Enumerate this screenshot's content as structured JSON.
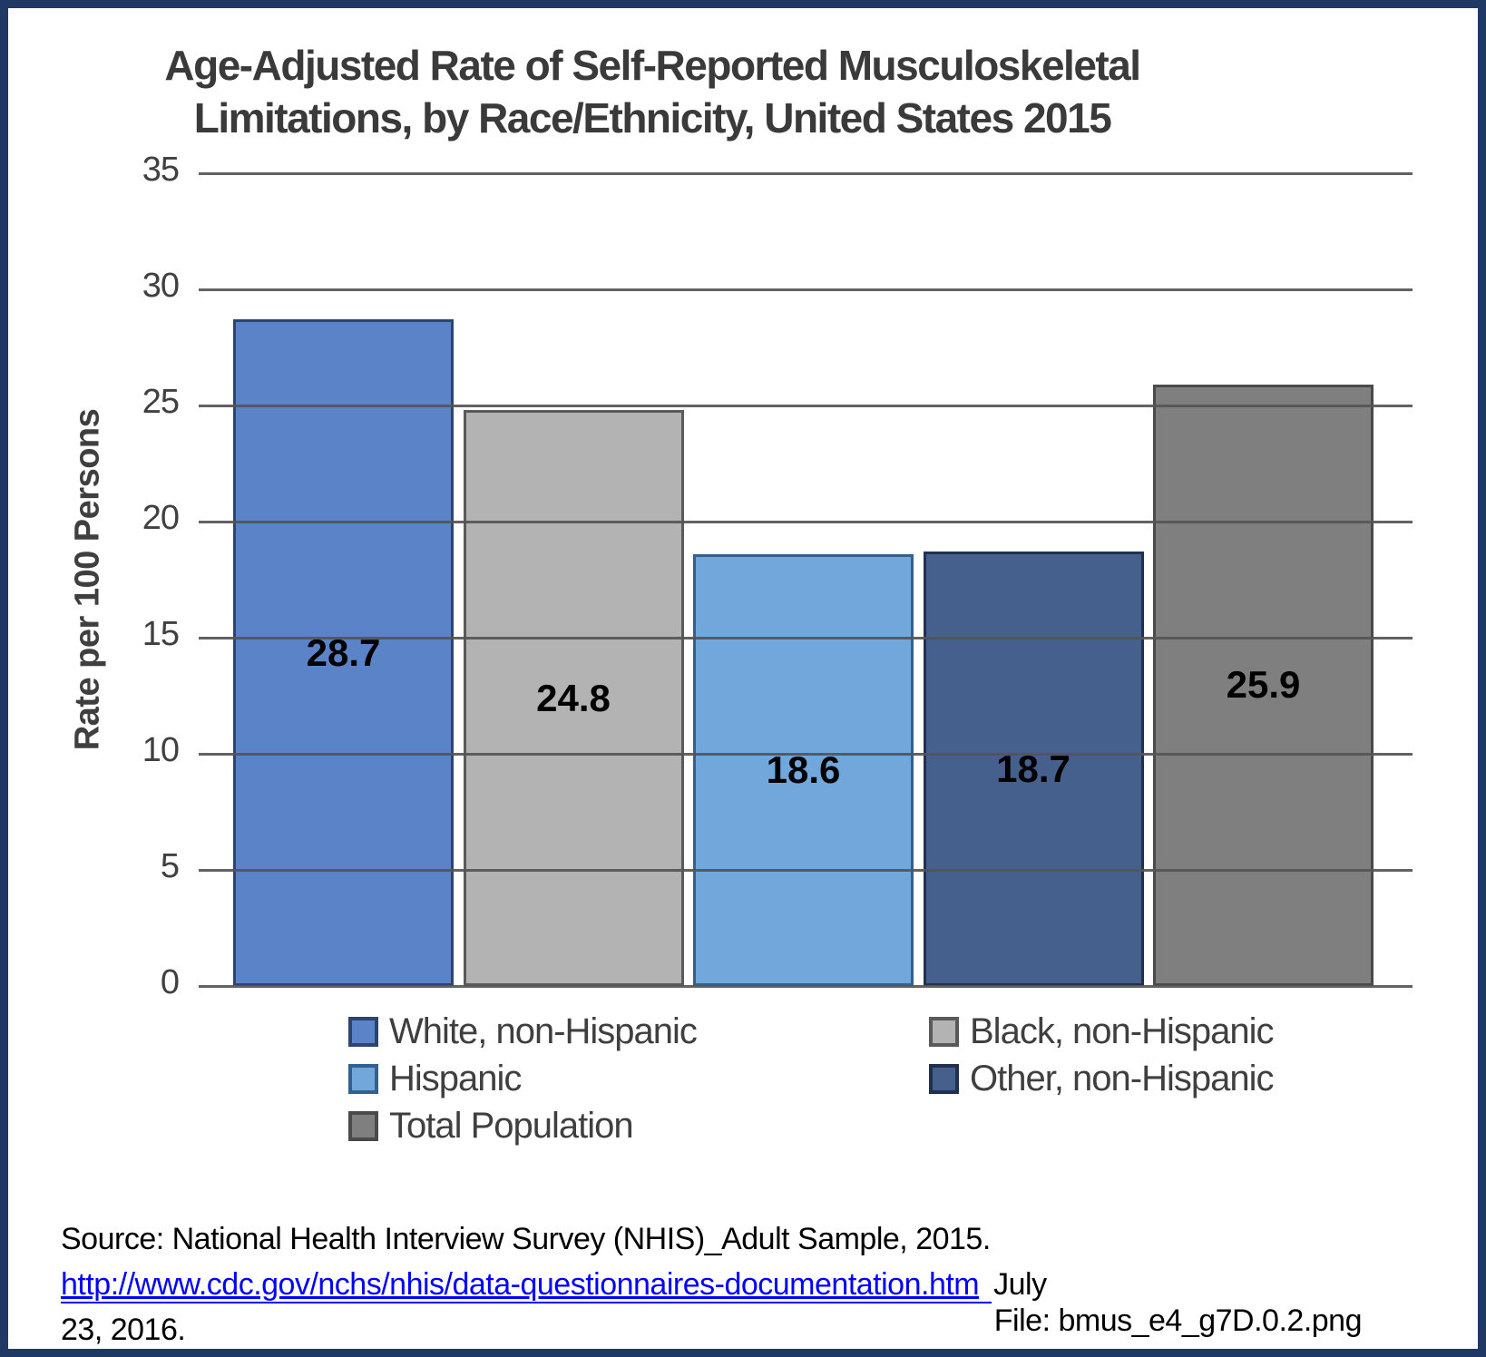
{
  "chart": {
    "title_line1": "Age-Adjusted Rate of Self-Reported Musculoskeletal",
    "title_line2": "Limitations, by Race/Ethnicity, United States 2015",
    "y_axis_label": "Rate per 100 Persons"
  },
  "chart_data": {
    "type": "bar",
    "title": "Age-Adjusted Rate of Self-Reported Musculoskeletal Limitations, by Race/Ethnicity, United States 2015",
    "categories": [
      "White, non-Hispanic",
      "Black, non-Hispanic",
      "Hispanic",
      "Other, non-Hispanic",
      "Total Population"
    ],
    "values": [
      28.7,
      24.8,
      18.6,
      18.7,
      25.9
    ],
    "data_labels": [
      "28.7",
      "24.8",
      "18.6",
      "18.7",
      "25.9"
    ],
    "xlabel": "",
    "ylabel": "Rate per 100 Persons",
    "ylim": [
      0,
      35
    ],
    "yticks": [
      0,
      5,
      10,
      15,
      20,
      25,
      30,
      35
    ],
    "grid": true,
    "gridlines_on_top_of_bars": true,
    "legend_position": "bottom",
    "colors": {
      "bar_fills": [
        "#5B84C8",
        "#B3B3B3",
        "#72A7DB",
        "#45608C",
        "#7F7F7F"
      ],
      "bar_borders": [
        "#2B4570",
        "#5A5A5A",
        "#31618E",
        "#1E3250",
        "#4A4A4A"
      ],
      "gridline": "#595959",
      "text": "#3F3F3F",
      "frame": "#1F3864",
      "data_label": "#000000"
    }
  },
  "footer": {
    "source_prefix": "Source: National Health Interview Survey (NHIS)_Adult Sample, 2015.",
    "link_text": "http://www.cdc.gov/nchs/nhis/data-questionnaires-documentation.htm",
    "link_suffix": "July",
    "date_line": "23, 2016.",
    "link_color": "#0000FF",
    "file_label": "File: bmus_e4_g7D.0.2.png"
  }
}
